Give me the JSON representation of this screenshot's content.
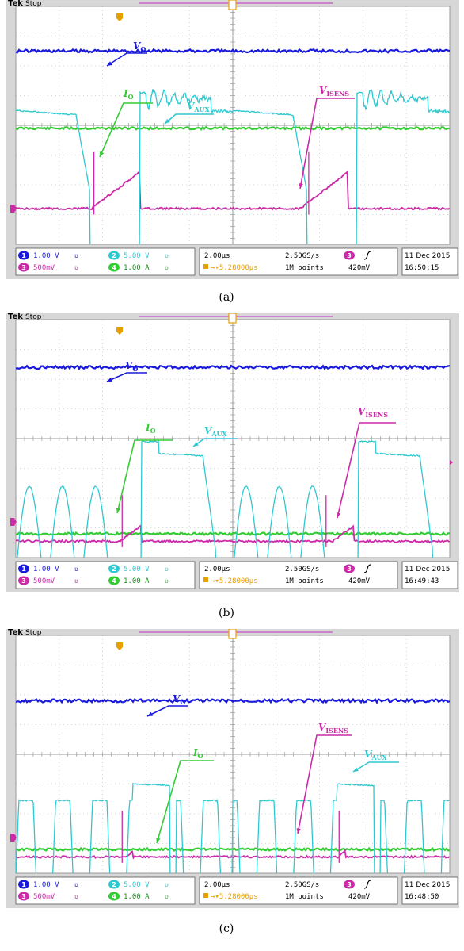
{
  "header": {
    "brand": "Tek",
    "status": "Stop"
  },
  "scope_settings": {
    "ch1_scale": "1.00 V",
    "ch2_scale": "5.00 V",
    "ch3_scale": "500mV",
    "ch4_scale": "1.00 A",
    "timebase": "2.00µs",
    "delay": "5.28000µs",
    "sample_rate": "2.50GS/s",
    "record_length": "1M points",
    "trigger_level": "420mV",
    "date": "11 Dec 2015"
  },
  "channel_badges": {
    "ch1": "1",
    "ch2": "2",
    "ch3": "3",
    "ch4": "4"
  },
  "labels": {
    "vo": "V",
    "vo_sub": "O",
    "io": "I",
    "io_sub": "O",
    "vaux": "V",
    "vaux_sub": "AUX",
    "visens": "V",
    "visens_sub": "ISENS"
  },
  "colors": {
    "ch1": "#1a1adc",
    "ch2": "#2ec8d0",
    "ch3": "#cc2aa8",
    "ch4": "#33cc33",
    "grid_bg": "#ffffff",
    "frame": "#d7d7d7",
    "trigger_marker": "#e8a000"
  },
  "chart_data": [
    {
      "type": "line",
      "caption": "(a)",
      "time": "16:50:15",
      "series": [
        {
          "name": "V",
          "channel": 1,
          "shape": "flat",
          "level_div": 6.5
        },
        {
          "name": "V",
          "channel": 2,
          "shape": "dcm_switching_low_ringing"
        },
        {
          "name": "I",
          "channel": 4,
          "shape": "flat",
          "level_div": 3.9
        },
        {
          "name": "V",
          "channel": 3,
          "shape": "current_ramp"
        }
      ]
    },
    {
      "type": "line",
      "caption": "(b)",
      "time": "16:49:43",
      "series": [
        {
          "name": "V",
          "channel": 1,
          "shape": "flat",
          "level_div": 6.4
        },
        {
          "name": "V",
          "channel": 2,
          "shape": "dcm_switching_ringing_3"
        },
        {
          "name": "I",
          "channel": 4,
          "shape": "flat",
          "level_div": 0.8
        },
        {
          "name": "V",
          "channel": 3,
          "shape": "current_ramp_small"
        }
      ]
    },
    {
      "type": "line",
      "caption": "(c)",
      "time": "16:48:50",
      "series": [
        {
          "name": "V",
          "channel": 1,
          "shape": "flat",
          "level_div": 5.8
        },
        {
          "name": "V",
          "channel": 2,
          "shape": "dcm_switching_ringing_short"
        },
        {
          "name": "I",
          "channel": 4,
          "shape": "flat",
          "level_div": 0.8
        },
        {
          "name": "V",
          "channel": 3,
          "shape": "current_ramp_tiny"
        }
      ]
    }
  ]
}
